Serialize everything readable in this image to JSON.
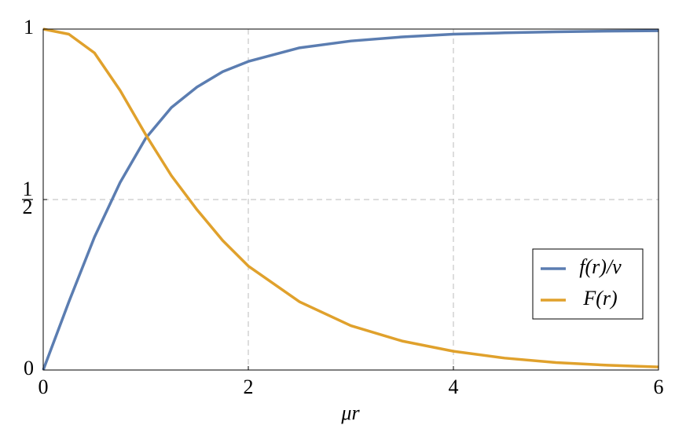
{
  "chart_data": {
    "type": "line",
    "x_label": "μr",
    "x": [
      0,
      0.25,
      0.5,
      0.75,
      1,
      1.25,
      1.5,
      1.75,
      2,
      2.5,
      3,
      3.5,
      4,
      4.5,
      5,
      5.5,
      6
    ],
    "series": [
      {
        "name": "f(r)/v",
        "color": "#5b7db1",
        "values": [
          0,
          0.2,
          0.39,
          0.55,
          0.68,
          0.77,
          0.83,
          0.875,
          0.905,
          0.945,
          0.965,
          0.977,
          0.985,
          0.989,
          0.992,
          0.994,
          0.995
        ]
      },
      {
        "name": "F(r)",
        "color": "#e0a12c",
        "values": [
          1,
          0.985,
          0.93,
          0.82,
          0.69,
          0.57,
          0.47,
          0.38,
          0.305,
          0.2,
          0.13,
          0.085,
          0.055,
          0.035,
          0.022,
          0.014,
          0.009
        ]
      }
    ],
    "xlim": [
      0,
      6
    ],
    "xticks": [
      0,
      2,
      4,
      6
    ],
    "ylim": [
      0,
      1
    ],
    "yticks": [
      0,
      {
        "value": 0.5,
        "label": "1/2"
      },
      1
    ],
    "grid": true,
    "legend": "lower right"
  }
}
